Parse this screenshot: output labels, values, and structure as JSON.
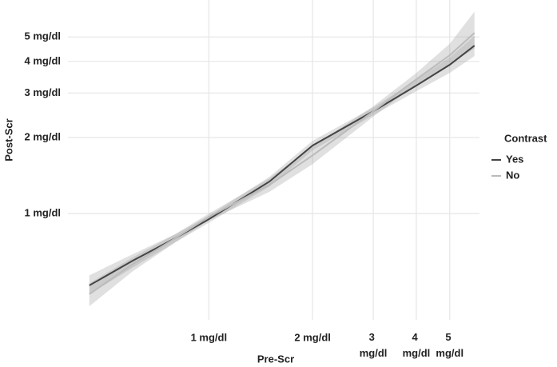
{
  "chart_data": {
    "type": "line",
    "x_label": "Pre-Scr",
    "y_label": "Post-Scr",
    "log_scale": true,
    "grid": true,
    "legend_title": "Contrast",
    "legend_position": "right",
    "x": [
      0.45,
      0.6,
      0.8,
      1,
      1.5,
      2,
      3,
      4,
      5,
      5.9
    ],
    "series": [
      {
        "name": "Yes",
        "color": "#444444",
        "values": [
          0.52,
          0.65,
          0.8,
          0.95,
          1.34,
          1.86,
          2.54,
          3.21,
          3.88,
          4.62
        ],
        "lower": [
          0.48,
          0.61,
          0.77,
          0.92,
          1.28,
          1.78,
          2.45,
          3.05,
          3.6,
          4.2
        ],
        "upper": [
          0.57,
          0.69,
          0.83,
          0.98,
          1.4,
          1.94,
          2.63,
          3.38,
          4.15,
          5.05
        ]
      },
      {
        "name": "No",
        "color": "#bbbbbb",
        "values": [
          0.48,
          0.63,
          0.8,
          0.97,
          1.3,
          1.7,
          2.54,
          3.4,
          4.23,
          5.19
        ],
        "lower": [
          0.43,
          0.59,
          0.77,
          0.94,
          1.22,
          1.57,
          2.42,
          3.25,
          3.9,
          4.5
        ],
        "upper": [
          0.53,
          0.67,
          0.83,
          1.0,
          1.38,
          1.84,
          2.66,
          3.6,
          4.7,
          6.3
        ]
      }
    ],
    "xlim": [
      0.39,
      6.1
    ],
    "ylim": [
      0.38,
      7
    ],
    "xticks": [
      {
        "value": 1,
        "label": "1 mg/dl"
      },
      {
        "value": 2,
        "label": "2 mg/dl"
      },
      {
        "value": 3,
        "label": "3 mg/dl"
      },
      {
        "value": 4,
        "label": "4 mg/dl"
      },
      {
        "value": 5,
        "label": "5 mg/dl"
      }
    ],
    "yticks": [
      {
        "value": 1,
        "label": "1 mg/dl"
      },
      {
        "value": 2,
        "label": "2 mg/dl"
      },
      {
        "value": 3,
        "label": "3 mg/dl"
      },
      {
        "value": 4,
        "label": "4 mg/dl"
      },
      {
        "value": 5,
        "label": "5 mg/dl"
      }
    ]
  }
}
